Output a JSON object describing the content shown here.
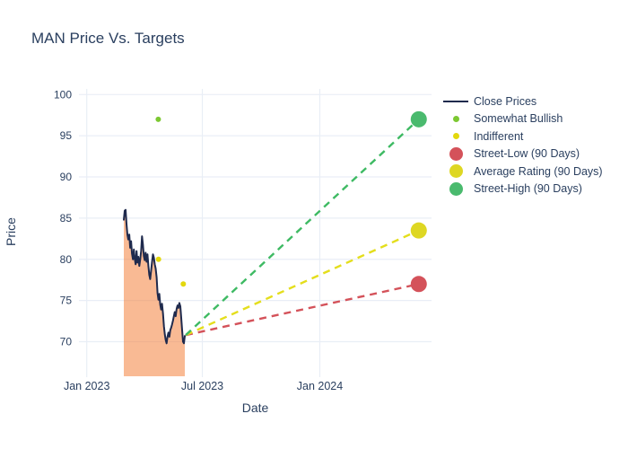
{
  "title": "MAN Price Vs. Targets",
  "axes": {
    "x_label": "Date",
    "y_label": "Price",
    "x_ticks": [
      {
        "label": "Jan 2023",
        "day": 0
      },
      {
        "label": "Jul 2023",
        "day": 181
      },
      {
        "label": "Jan 2024",
        "day": 365
      }
    ],
    "y_ticks": [
      100,
      95,
      90,
      85,
      80,
      75,
      70
    ]
  },
  "colors": {
    "text": "#2a3f5f",
    "gridline": "#e9eef6",
    "background": "#ffffff",
    "close_line": "#1f2a4d",
    "close_fill": "#f4823c",
    "somewhat_bullish": "#7cc832",
    "indifferent": "#e3d80d",
    "street_low": "#d4525a",
    "average_rating": "#ded723",
    "street_high": "#4aba6e"
  },
  "legend": {
    "items": [
      {
        "label": "Close Prices",
        "marker": "line",
        "color": "#1f2a4d"
      },
      {
        "label": "Somewhat Bullish",
        "marker": "dot-small",
        "color": "#7cc832"
      },
      {
        "label": "Indifferent",
        "marker": "dot-small",
        "color": "#e3d80d"
      },
      {
        "label": "Street-Low (90 Days)",
        "marker": "dot-large",
        "color": "#d4525a"
      },
      {
        "label": "Average Rating (90 Days)",
        "marker": "dot-large",
        "color": "#ded723"
      },
      {
        "label": "Street-High (90 Days)",
        "marker": "dot-large",
        "color": "#4aba6e"
      }
    ]
  },
  "chart_data": {
    "type": "line",
    "title": "MAN Price Vs. Targets",
    "xlabel": "Date",
    "ylabel": "Price",
    "x_unit": "days since 2023-01-01",
    "xlim": [
      -12,
      540
    ],
    "ylim": [
      65.6,
      100.7
    ],
    "grid": true,
    "legend_position": "right",
    "series": [
      {
        "name": "Close Prices",
        "type": "line",
        "color": "#1f2a4d",
        "fill": "#f4823c",
        "fill_opacity": 0.55,
        "x": [
          58.0,
          59.4,
          60.9,
          62.3,
          63.7,
          65.1,
          66.6,
          68.0,
          69.4,
          70.8,
          72.3,
          73.7,
          75.1,
          76.6,
          78.0,
          79.4,
          80.8,
          82.3,
          83.7,
          85.1,
          86.5,
          88.0,
          89.4,
          90.8,
          92.2,
          93.7,
          95.1,
          96.5,
          98.0,
          99.4,
          100.8,
          102.2,
          103.7,
          105.1,
          106.5,
          107.9,
          109.4,
          110.8,
          112.2,
          113.7,
          115.1,
          116.5,
          117.9,
          119.4,
          120.8,
          122.2,
          123.6,
          125.1,
          126.5,
          127.9,
          129.4,
          130.8,
          132.2,
          133.6,
          135.1,
          136.5,
          137.9,
          139.3,
          140.8,
          142.2,
          143.6,
          145.0,
          146.5,
          147.9,
          149.3,
          150.8,
          152.2,
          153.6
        ],
        "y": [
          84.8,
          85.9,
          86.0,
          84.3,
          83.0,
          82.4,
          83.0,
          81.4,
          82.2,
          80.7,
          80.0,
          81.2,
          80.1,
          79.4,
          81.0,
          79.6,
          80.3,
          79.2,
          80.0,
          81.0,
          82.8,
          81.8,
          80.4,
          79.9,
          80.8,
          79.7,
          80.6,
          79.2,
          78.1,
          77.6,
          78.6,
          79.6,
          80.6,
          80.2,
          79.4,
          78.9,
          77.8,
          75.9,
          75.1,
          75.8,
          74.5,
          73.9,
          74.6,
          73.4,
          71.9,
          70.9,
          70.2,
          69.8,
          70.6,
          71.1,
          70.6,
          71.4,
          71.7,
          72.1,
          72.6,
          73.1,
          73.6,
          73.1,
          74.0,
          74.4,
          74.1,
          74.7,
          74.3,
          72.9,
          71.4,
          70.0,
          69.8,
          70.7
        ]
      },
      {
        "name": "Somewhat Bullish",
        "type": "scatter",
        "color": "#7cc832",
        "marker_size": 6,
        "x": [
          112.0
        ],
        "y": [
          97.0
        ]
      },
      {
        "name": "Indifferent",
        "type": "scatter",
        "color": "#e3d80d",
        "marker_size": 6,
        "x": [
          112.4,
          151.2
        ],
        "y": [
          80.0,
          77.0
        ]
      },
      {
        "name": "Street-Low (90 Days)",
        "type": "target",
        "color": "#d4525a",
        "dash_color": "#d4525a",
        "marker_size": 18,
        "anchor": {
          "x": 155.0,
          "y": 70.8
        },
        "x": [
          520
        ],
        "y": [
          77.0
        ]
      },
      {
        "name": "Average Rating (90 Days)",
        "type": "target",
        "color": "#ded723",
        "dash_color": "#e4de1c",
        "marker_size": 18,
        "anchor": {
          "x": 155.0,
          "y": 70.8
        },
        "x": [
          520
        ],
        "y": [
          83.5
        ]
      },
      {
        "name": "Street-High (90 Days)",
        "type": "target",
        "color": "#4aba6e",
        "dash_color": "#3eba63",
        "marker_size": 18,
        "anchor": {
          "x": 155.0,
          "y": 70.8
        },
        "x": [
          520
        ],
        "y": [
          97.0
        ]
      }
    ]
  }
}
